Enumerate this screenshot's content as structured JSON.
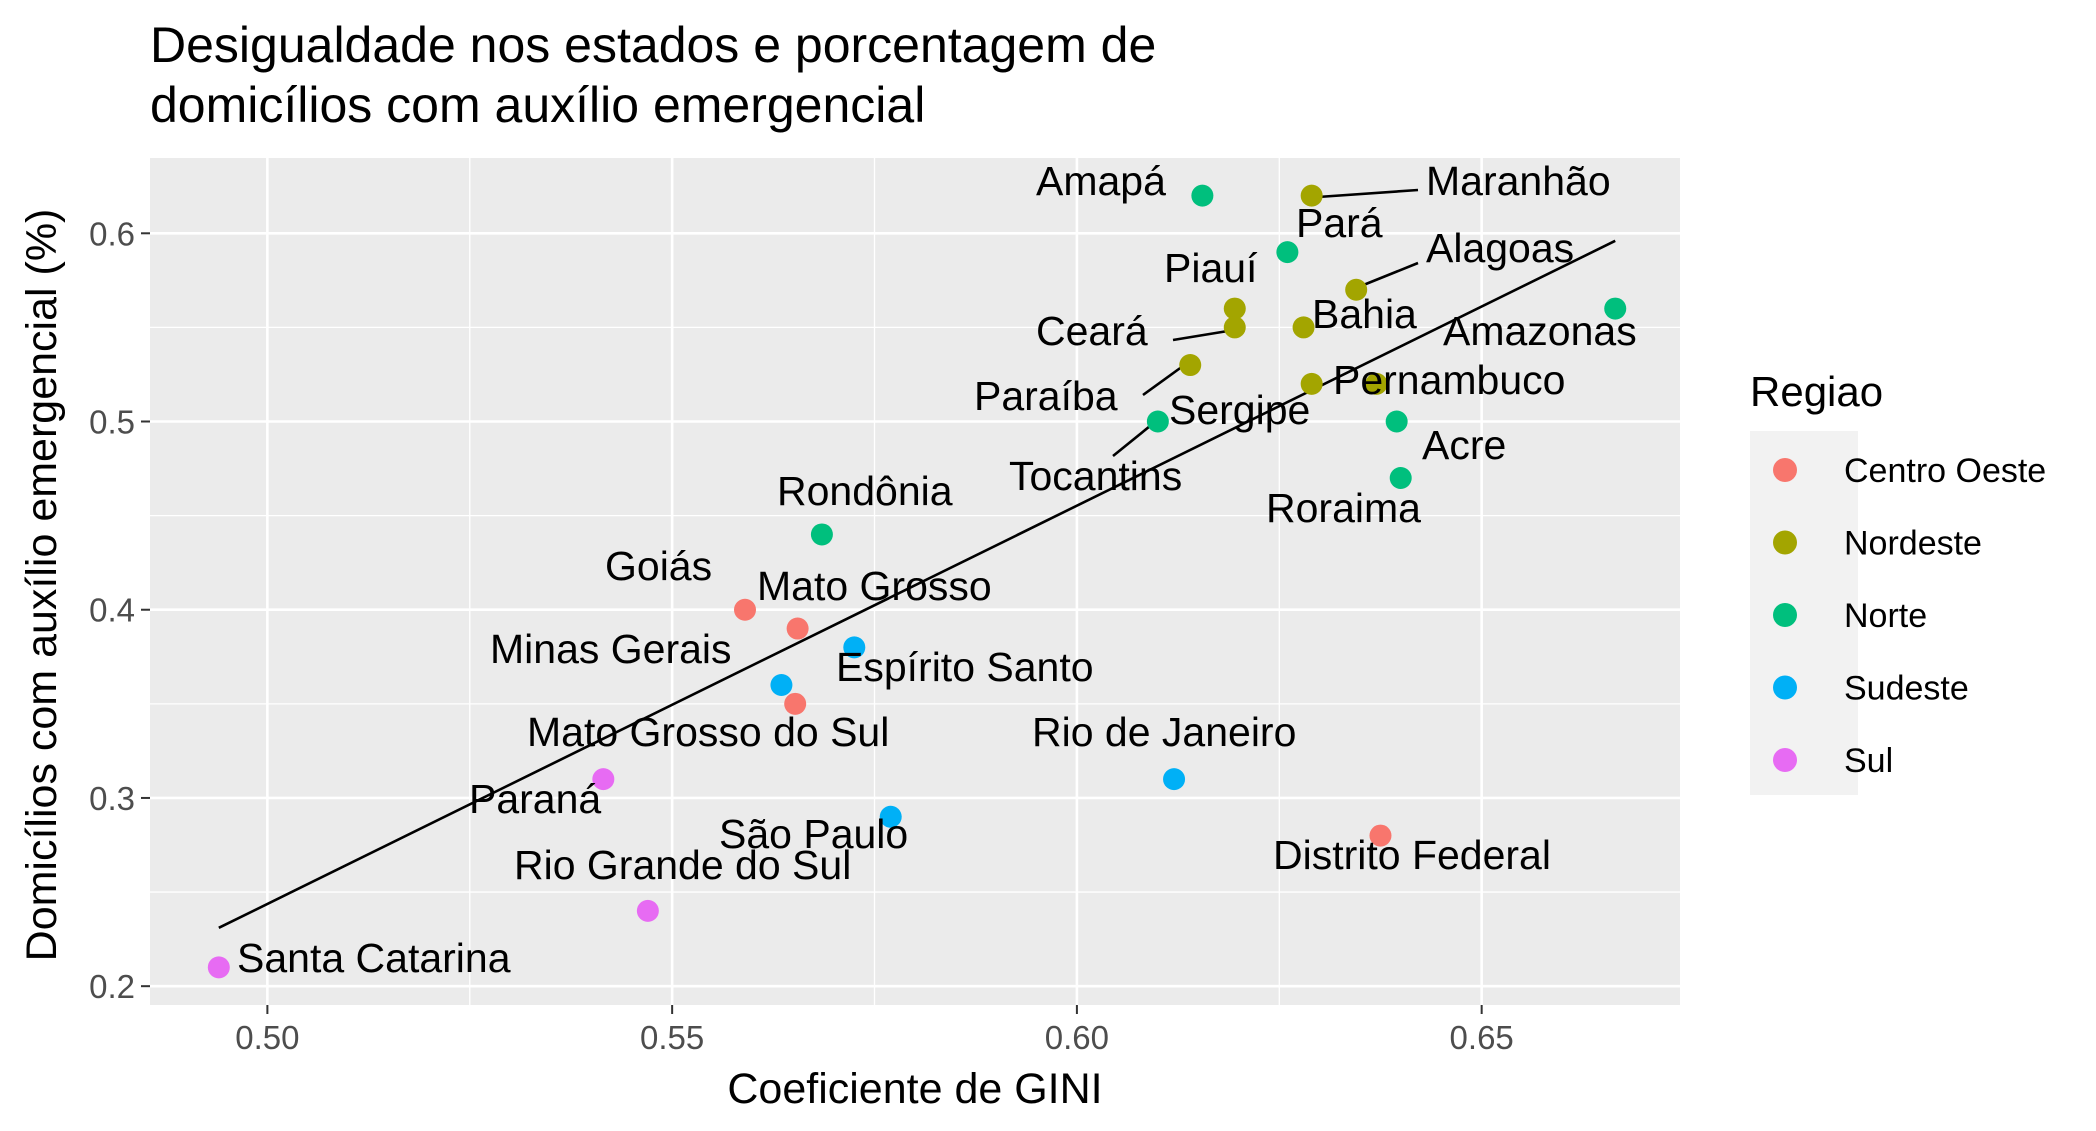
{
  "chart_data": {
    "type": "scatter",
    "title": "Desigualdade nos estados e porcentagem de domicílios com auxílio emergencial",
    "title_lines": [
      "Desigualdade nos estados e porcentagem de",
      "domicílios com auxílio emergencial"
    ],
    "xlabel": "Coeficiente de GINI",
    "ylabel": "Domicílios com auxílio emergencial (%)",
    "xlim": [
      0.4855,
      0.6745
    ],
    "ylim": [
      0.19,
      0.64
    ],
    "x_ticks": [
      0.5,
      0.55,
      0.6,
      0.65
    ],
    "x_tick_labels": [
      "0.50",
      "0.55",
      "0.60",
      "0.65"
    ],
    "y_ticks": [
      0.2,
      0.3,
      0.4,
      0.5,
      0.6
    ],
    "y_tick_labels": [
      "0.2",
      "0.3",
      "0.4",
      "0.5",
      "0.6"
    ],
    "grid": true,
    "legend": {
      "title": "Regiao",
      "placement": "right",
      "entries": [
        {
          "name": "Centro Oeste",
          "color": "#F8766D"
        },
        {
          "name": "Nordeste",
          "color": "#A3A500"
        },
        {
          "name": "Norte",
          "color": "#00BF7D"
        },
        {
          "name": "Sudeste",
          "color": "#00B0F6"
        },
        {
          "name": "Sul",
          "color": "#E76BF3"
        }
      ]
    },
    "trend_line": {
      "x": [
        0.494,
        0.6665
      ],
      "y": [
        0.231,
        0.596
      ]
    },
    "points": [
      {
        "label": "Amapá",
        "x": 0.6155,
        "y": 0.62,
        "region": "Norte"
      },
      {
        "label": "Maranhão",
        "x": 0.629,
        "y": 0.62,
        "region": "Nordeste"
      },
      {
        "label": "Pará",
        "x": 0.626,
        "y": 0.59,
        "region": "Norte"
      },
      {
        "label": "Alagoas",
        "x": 0.6345,
        "y": 0.57,
        "region": "Nordeste"
      },
      {
        "label": "Piauí",
        "x": 0.6195,
        "y": 0.56,
        "region": "Nordeste"
      },
      {
        "label": "Amazonas",
        "x": 0.6665,
        "y": 0.56,
        "region": "Norte"
      },
      {
        "label": "Ceará",
        "x": 0.6195,
        "y": 0.55,
        "region": "Nordeste"
      },
      {
        "label": "Bahia",
        "x": 0.628,
        "y": 0.55,
        "region": "Nordeste"
      },
      {
        "label": "Paraíba",
        "x": 0.614,
        "y": 0.53,
        "region": "Nordeste"
      },
      {
        "label": "Pernambuco",
        "x": 0.637,
        "y": 0.52,
        "region": "Nordeste"
      },
      {
        "label": "Sergipe",
        "x": 0.629,
        "y": 0.52,
        "region": "Nordeste"
      },
      {
        "label": "Tocantins",
        "x": 0.61,
        "y": 0.5,
        "region": "Norte"
      },
      {
        "label": "Acre",
        "x": 0.6395,
        "y": 0.5,
        "region": "Norte"
      },
      {
        "label": "Roraima",
        "x": 0.64,
        "y": 0.47,
        "region": "Norte"
      },
      {
        "label": "Rondônia",
        "x": 0.5685,
        "y": 0.44,
        "region": "Norte"
      },
      {
        "label": "Goiás",
        "x": 0.559,
        "y": 0.4,
        "region": "Centro Oeste"
      },
      {
        "label": "Mato Grosso",
        "x": 0.5655,
        "y": 0.39,
        "region": "Centro Oeste"
      },
      {
        "label": "Espírito Santo",
        "x": 0.5725,
        "y": 0.38,
        "region": "Sudeste"
      },
      {
        "label": "Minas Gerais",
        "x": 0.5635,
        "y": 0.36,
        "region": "Sudeste"
      },
      {
        "label": "Mato Grosso do Sul",
        "x": 0.5652,
        "y": 0.35,
        "region": "Centro Oeste"
      },
      {
        "label": "Rio de Janeiro",
        "x": 0.612,
        "y": 0.31,
        "region": "Sudeste"
      },
      {
        "label": "Paraná",
        "x": 0.5415,
        "y": 0.31,
        "region": "Sul"
      },
      {
        "label": "São Paulo",
        "x": 0.577,
        "y": 0.29,
        "region": "Sudeste"
      },
      {
        "label": "Distrito Federal",
        "x": 0.6375,
        "y": 0.28,
        "region": "Centro Oeste"
      },
      {
        "label": "Rio Grande do Sul",
        "x": 0.547,
        "y": 0.24,
        "region": "Sul"
      },
      {
        "label": "Santa Catarina",
        "x": 0.494,
        "y": 0.21,
        "region": "Sul"
      }
    ]
  }
}
